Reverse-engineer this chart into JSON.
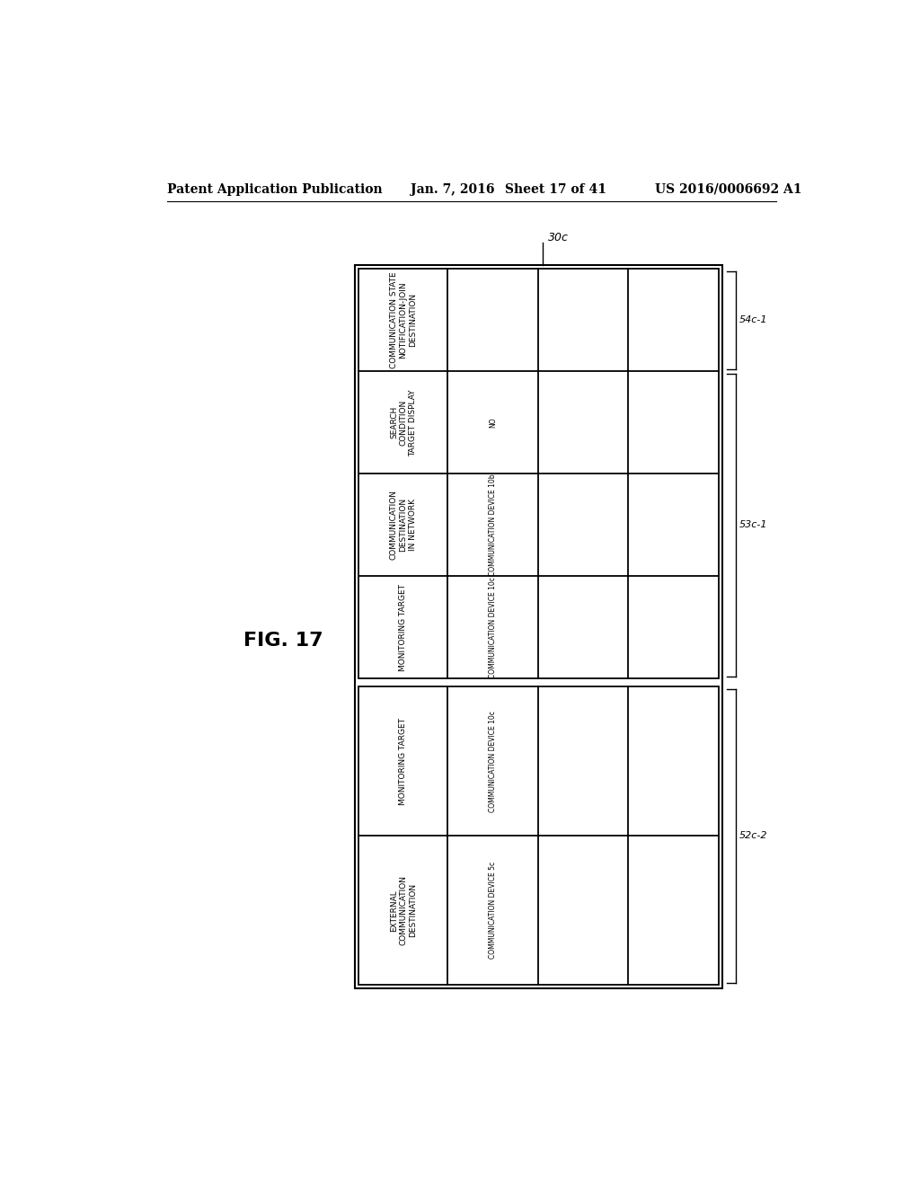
{
  "title": "FIG. 17",
  "header_text": "Patent Application Publication",
  "header_date": "Jan. 7, 2016",
  "header_sheet": "Sheet 17 of 41",
  "header_patent": "US 2016/0006692 A1",
  "label_30c": "30c",
  "label_52c2": "52c-2",
  "label_53c1": "53c-1",
  "label_54c1": "54c-1",
  "bg_color": "#ffffff",
  "line_color": "#000000",
  "text_color": "#000000",
  "rows": [
    {
      "header": "COMMUNICATION STATE\nNOTIFICATION-JOIN\nDESTINATION",
      "data": [
        "",
        "",
        ""
      ]
    },
    {
      "header": "SEARCH\nCONDITION\nTARGET DISPLAY",
      "data": [
        "NO",
        "",
        ""
      ]
    },
    {
      "header": "COMMUNICATION\nDESTINATION\nIN NETWORK",
      "data": [
        "COMMUNICATION DEVICE 10b",
        "",
        ""
      ]
    },
    {
      "header": "MONITORING TARGET",
      "data": [
        "COMMUNICATION DEVICE 10c",
        "",
        ""
      ]
    },
    {
      "header": "MONITORING TARGET",
      "data": [
        "COMMUNICATION DEVICE 10c",
        "",
        ""
      ]
    },
    {
      "header": "EXTERNAL\nCOMMUNICATION\nDESTINATION",
      "data": [
        "COMMUNICATION DEVICE 5c",
        "",
        ""
      ]
    }
  ]
}
